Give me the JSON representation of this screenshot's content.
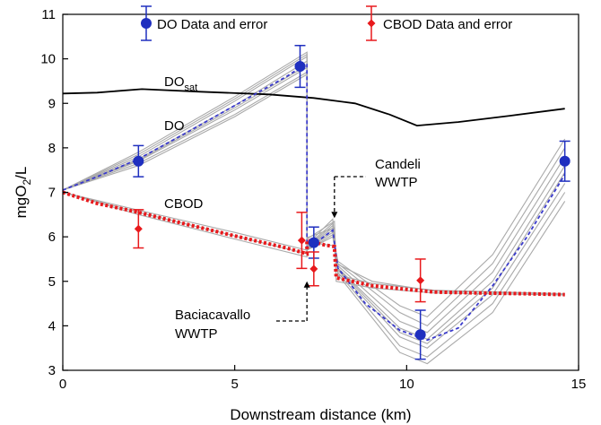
{
  "chart_data": {
    "type": "line",
    "xlabel": "Downstream distance (km)",
    "ylabel_main": "mgO",
    "ylabel_sub": "2",
    "ylabel_tail": "/L",
    "xlim": [
      0,
      15
    ],
    "ylim": [
      3,
      11
    ],
    "xticks": [
      0,
      5,
      10,
      15
    ],
    "yticks": [
      3,
      4,
      5,
      6,
      7,
      8,
      9,
      10,
      11
    ],
    "grid": false,
    "legend": {
      "placement": "top",
      "do_label": "DO Data and error",
      "cbod_label": "CBOD Data and error"
    },
    "colors": {
      "do": "#1f2fbf",
      "cbod": "#e8191c",
      "dosat": "#000000",
      "ensemble": "#a9a9a9",
      "do_mean": "#3a3acc"
    },
    "annotations": {
      "dosat_main": "DO",
      "dosat_sub": "sat",
      "do": "DO",
      "cbod": "CBOD",
      "candeli_1": "Candeli",
      "candeli_2": "WWTP",
      "bacia_1": "Baciacavallo",
      "bacia_2": "WWTP"
    },
    "wwtp_locations": {
      "baciacavallo_km": 7.1,
      "candeli_km": 7.9
    },
    "do_observations": [
      {
        "x": 2.2,
        "y": 7.7,
        "err": 0.35
      },
      {
        "x": 6.9,
        "y": 9.83,
        "err": 0.47
      },
      {
        "x": 7.3,
        "y": 5.87,
        "err": 0.35
      },
      {
        "x": 10.4,
        "y": 3.8,
        "err": 0.55
      },
      {
        "x": 14.6,
        "y": 7.7,
        "err": 0.45
      }
    ],
    "cbod_observations": [
      {
        "x": 2.2,
        "y": 6.18,
        "err": 0.43
      },
      {
        "x": 6.95,
        "y": 5.92,
        "err": 0.63
      },
      {
        "x": 7.3,
        "y": 5.28,
        "err": 0.38
      },
      {
        "x": 10.4,
        "y": 5.02,
        "err": 0.48
      }
    ],
    "dosat_curve": [
      [
        0,
        9.22
      ],
      [
        1,
        9.24
      ],
      [
        2.3,
        9.32
      ],
      [
        4,
        9.26
      ],
      [
        6,
        9.2
      ],
      [
        7.3,
        9.12
      ],
      [
        8.5,
        9.0
      ],
      [
        9.5,
        8.75
      ],
      [
        10.3,
        8.5
      ],
      [
        11.5,
        8.58
      ],
      [
        13,
        8.72
      ],
      [
        14.6,
        8.88
      ]
    ],
    "do_model_mean": [
      [
        0,
        7.05
      ],
      [
        1,
        7.35
      ],
      [
        2.2,
        7.75
      ],
      [
        3.5,
        8.3
      ],
      [
        5,
        8.95
      ],
      [
        6.5,
        9.6
      ],
      [
        7.1,
        9.9
      ],
      [
        7.1,
        5.75
      ],
      [
        7.5,
        5.95
      ],
      [
        7.85,
        6.15
      ],
      [
        8.0,
        5.3
      ],
      [
        8.8,
        4.5
      ],
      [
        9.8,
        3.9
      ],
      [
        10.6,
        3.68
      ],
      [
        11.5,
        3.95
      ],
      [
        12.5,
        4.9
      ],
      [
        13.5,
        6.0
      ],
      [
        14.6,
        7.4
      ]
    ],
    "do_model_ensemble": [
      [
        [
          0,
          7.05
        ],
        [
          2.2,
          7.65
        ],
        [
          5,
          8.75
        ],
        [
          7.1,
          9.7
        ],
        [
          7.1,
          5.7
        ],
        [
          7.85,
          6.0
        ],
        [
          8.0,
          5.4
        ],
        [
          9.8,
          4.3
        ],
        [
          10.6,
          4.0
        ],
        [
          12.5,
          5.4
        ],
        [
          14.6,
          8.0
        ]
      ],
      [
        [
          0,
          7.05
        ],
        [
          2.2,
          7.7
        ],
        [
          5,
          8.85
        ],
        [
          7.1,
          9.8
        ],
        [
          7.1,
          5.72
        ],
        [
          7.85,
          6.1
        ],
        [
          8.0,
          5.35
        ],
        [
          9.8,
          4.1
        ],
        [
          10.6,
          3.85
        ],
        [
          12.5,
          5.2
        ],
        [
          14.6,
          7.8
        ]
      ],
      [
        [
          0,
          7.05
        ],
        [
          2.2,
          7.8
        ],
        [
          5,
          9.05
        ],
        [
          7.1,
          10.05
        ],
        [
          7.1,
          5.78
        ],
        [
          7.85,
          6.25
        ],
        [
          8.0,
          5.25
        ],
        [
          9.8,
          3.75
        ],
        [
          10.6,
          3.5
        ],
        [
          12.5,
          4.7
        ],
        [
          14.6,
          7.2
        ]
      ],
      [
        [
          0,
          7.05
        ],
        [
          2.2,
          7.85
        ],
        [
          5,
          9.1
        ],
        [
          7.1,
          10.1
        ],
        [
          7.1,
          5.8
        ],
        [
          7.85,
          6.3
        ],
        [
          8.0,
          5.2
        ],
        [
          9.8,
          3.55
        ],
        [
          10.6,
          3.3
        ],
        [
          12.5,
          4.5
        ],
        [
          14.6,
          7.0
        ]
      ],
      [
        [
          0,
          7.05
        ],
        [
          2.2,
          7.6
        ],
        [
          5,
          8.7
        ],
        [
          7.1,
          9.65
        ],
        [
          7.1,
          5.7
        ],
        [
          7.85,
          6.05
        ],
        [
          8.0,
          5.45
        ],
        [
          9.8,
          4.45
        ],
        [
          10.6,
          4.2
        ],
        [
          12.5,
          5.6
        ],
        [
          14.6,
          8.2
        ]
      ],
      [
        [
          0,
          7.05
        ],
        [
          2.2,
          7.9
        ],
        [
          5,
          9.15
        ],
        [
          7.1,
          10.15
        ],
        [
          7.1,
          5.82
        ],
        [
          7.85,
          6.4
        ],
        [
          8.0,
          5.15
        ],
        [
          9.8,
          3.4
        ],
        [
          10.6,
          3.15
        ],
        [
          12.5,
          4.3
        ],
        [
          14.6,
          6.8
        ]
      ],
      [
        [
          0,
          7.05
        ],
        [
          2.2,
          7.72
        ],
        [
          5,
          8.9
        ],
        [
          7.1,
          9.85
        ],
        [
          7.1,
          5.74
        ],
        [
          7.85,
          6.15
        ],
        [
          8.0,
          5.3
        ],
        [
          9.8,
          3.95
        ],
        [
          10.6,
          3.7
        ],
        [
          12.5,
          5.0
        ],
        [
          14.6,
          7.6
        ]
      ],
      [
        [
          0,
          7.05
        ],
        [
          2.2,
          7.75
        ],
        [
          5,
          8.95
        ],
        [
          7.1,
          9.95
        ],
        [
          7.1,
          5.76
        ],
        [
          7.85,
          6.2
        ],
        [
          8.0,
          5.28
        ],
        [
          9.8,
          3.85
        ],
        [
          10.6,
          3.6
        ],
        [
          12.5,
          4.85
        ],
        [
          14.6,
          7.45
        ]
      ]
    ],
    "cbod_model_mean": [
      [
        0,
        7.0
      ],
      [
        1,
        6.75
      ],
      [
        2.2,
        6.55
      ],
      [
        3.5,
        6.3
      ],
      [
        5,
        6.02
      ],
      [
        6.5,
        5.75
      ],
      [
        7.1,
        5.62
      ],
      [
        7.1,
        5.92
      ],
      [
        7.6,
        5.82
      ],
      [
        7.9,
        5.78
      ],
      [
        7.95,
        5.08
      ],
      [
        9,
        4.9
      ],
      [
        10,
        4.82
      ],
      [
        10.8,
        4.76
      ],
      [
        12,
        4.74
      ],
      [
        13.5,
        4.72
      ],
      [
        14.6,
        4.7
      ]
    ],
    "cbod_model_ensemble": [
      [
        [
          0,
          7.0
        ],
        [
          2.2,
          6.5
        ],
        [
          5,
          5.95
        ],
        [
          7.1,
          5.55
        ],
        [
          7.1,
          5.88
        ],
        [
          7.9,
          5.8
        ],
        [
          7.95,
          5.15
        ],
        [
          9,
          4.95
        ],
        [
          10.8,
          4.8
        ],
        [
          14.6,
          4.72
        ]
      ],
      [
        [
          0,
          7.0
        ],
        [
          2.2,
          6.6
        ],
        [
          5,
          6.1
        ],
        [
          7.1,
          5.7
        ],
        [
          7.1,
          5.98
        ],
        [
          7.9,
          6.2
        ],
        [
          7.95,
          5.0
        ],
        [
          9,
          4.85
        ],
        [
          10.8,
          4.74
        ],
        [
          14.6,
          4.69
        ]
      ],
      [
        [
          0,
          7.0
        ],
        [
          2.2,
          6.55
        ],
        [
          5,
          6.02
        ],
        [
          7.1,
          5.62
        ],
        [
          7.1,
          5.95
        ],
        [
          7.9,
          6.35
        ],
        [
          7.95,
          5.4
        ],
        [
          9,
          5.0
        ],
        [
          10.8,
          4.78
        ],
        [
          14.6,
          4.71
        ]
      ]
    ]
  }
}
